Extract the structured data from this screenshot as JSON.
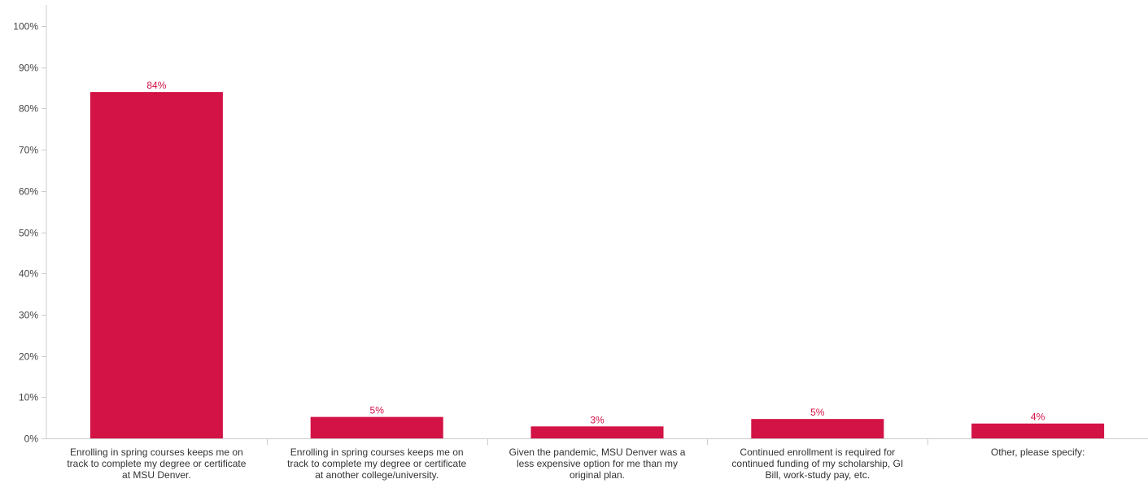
{
  "chart_data": {
    "type": "bar",
    "title": "",
    "xlabel": "",
    "ylabel": "",
    "ylim": [
      0,
      100
    ],
    "y_ticks": [
      "0%",
      "10%",
      "20%",
      "30%",
      "40%",
      "50%",
      "60%",
      "70%",
      "80%",
      "90%",
      "100%"
    ],
    "y_tick_values": [
      0,
      10,
      20,
      30,
      40,
      50,
      60,
      70,
      80,
      90,
      100
    ],
    "grid": false,
    "bar_color": "#d31245",
    "label_color": "#d31245",
    "categories": [
      "Enrolling in spring courses keeps me on track to complete my degree or certificate at MSU Denver.",
      "Enrolling in spring courses keeps me on track to complete my degree or certificate at another college/university.",
      "Given the pandemic, MSU Denver was a less expensive option for me than my original plan.",
      "Continued enrollment is required for continued funding of my scholarship, GI Bill, work-study pay, etc.",
      "Other, please specify:"
    ],
    "values": [
      84,
      5.2,
      2.9,
      4.7,
      3.6
    ],
    "data_labels": [
      "84%",
      "5%",
      "3%",
      "5%",
      "4%"
    ]
  }
}
